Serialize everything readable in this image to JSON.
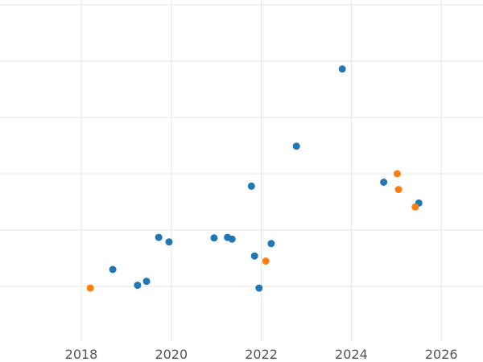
{
  "chart_data": {
    "type": "scatter",
    "title": "",
    "xlabel": "",
    "ylabel": "",
    "xlim": [
      2016.6,
      2026.9
    ],
    "ylim": [
      0,
      6
    ],
    "grid": true,
    "legend": "none",
    "x_ticks": [
      2018,
      2020,
      2022,
      2024,
      2026
    ],
    "x_tick_labels": [
      "2018",
      "2020",
      "2022",
      "2024",
      "2026"
    ],
    "y_ticks": [
      1,
      2,
      3,
      4,
      5,
      6
    ],
    "y_tick_labels": [],
    "series": [
      {
        "color": "#1f77b4",
        "points": [
          {
            "x": 2018.7,
            "y": 1.3
          },
          {
            "x": 2019.25,
            "y": 1.02
          },
          {
            "x": 2019.45,
            "y": 1.09
          },
          {
            "x": 2019.72,
            "y": 1.87
          },
          {
            "x": 2019.95,
            "y": 1.79
          },
          {
            "x": 2020.95,
            "y": 1.86
          },
          {
            "x": 2021.25,
            "y": 1.87
          },
          {
            "x": 2021.35,
            "y": 1.84
          },
          {
            "x": 2021.78,
            "y": 2.78
          },
          {
            "x": 2021.85,
            "y": 1.54
          },
          {
            "x": 2021.95,
            "y": 0.97
          },
          {
            "x": 2022.22,
            "y": 1.76
          },
          {
            "x": 2022.78,
            "y": 3.49
          },
          {
            "x": 2023.8,
            "y": 4.86
          },
          {
            "x": 2024.72,
            "y": 2.85
          },
          {
            "x": 2025.5,
            "y": 2.48
          }
        ]
      },
      {
        "color": "#ff7f0e",
        "points": [
          {
            "x": 2018.2,
            "y": 0.97
          },
          {
            "x": 2022.1,
            "y": 1.45
          },
          {
            "x": 2025.02,
            "y": 3.0
          },
          {
            "x": 2025.05,
            "y": 2.72
          },
          {
            "x": 2025.42,
            "y": 2.41
          }
        ]
      }
    ]
  }
}
